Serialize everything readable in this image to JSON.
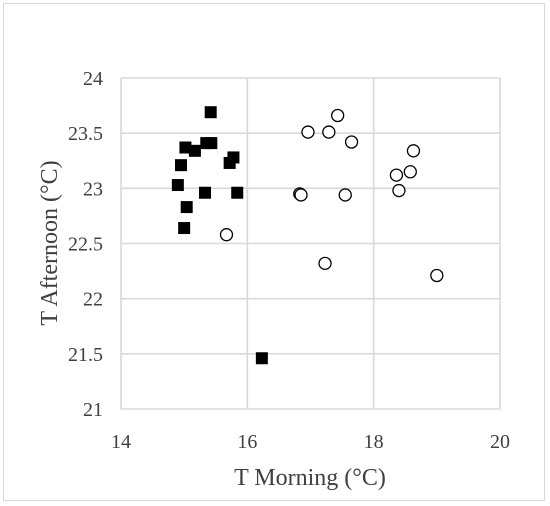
{
  "chart_data": {
    "type": "scatter",
    "title": "",
    "xlabel": "T Morning (°C)",
    "ylabel": "T Afternoon (°C)",
    "xlim": [
      14,
      20
    ],
    "ylim": [
      21,
      24
    ],
    "xticks": [
      14,
      16,
      18,
      20
    ],
    "yticks": [
      21,
      21.5,
      22,
      22.5,
      23,
      23.5,
      24
    ],
    "xtick_labels": [
      "14",
      "16",
      "18",
      "20"
    ],
    "ytick_labels": [
      "21",
      "21.5",
      "22",
      "22.5",
      "23",
      "23.5",
      "24"
    ],
    "grid": "both",
    "legend": "none",
    "colors": {
      "axis": "#d9d9d9",
      "grid": "#d9d9d9",
      "text": "#404040",
      "marker": "#000000"
    },
    "series": [
      {
        "marker": "filled-square",
        "points": [
          [
            15.42,
            23.69
          ],
          [
            15.35,
            23.41
          ],
          [
            15.43,
            23.41
          ],
          [
            15.02,
            23.37
          ],
          [
            15.17,
            23.34
          ],
          [
            14.95,
            23.21
          ],
          [
            15.78,
            23.28
          ],
          [
            15.72,
            23.23
          ],
          [
            14.9,
            23.03
          ],
          [
            15.33,
            22.96
          ],
          [
            15.84,
            22.96
          ],
          [
            15.04,
            22.83
          ],
          [
            15.0,
            22.64
          ],
          [
            16.23,
            21.46
          ]
        ]
      },
      {
        "marker": "open-circle",
        "points": [
          [
            17.43,
            23.66
          ],
          [
            16.96,
            23.51
          ],
          [
            17.29,
            23.51
          ],
          [
            17.65,
            23.42
          ],
          [
            18.63,
            23.34
          ],
          [
            18.36,
            23.12
          ],
          [
            18.58,
            23.15
          ],
          [
            18.4,
            22.98
          ],
          [
            16.83,
            22.95
          ],
          [
            16.85,
            22.94
          ],
          [
            17.55,
            22.94
          ],
          [
            15.67,
            22.58
          ],
          [
            17.23,
            22.32
          ],
          [
            19.0,
            22.21
          ]
        ]
      }
    ]
  }
}
